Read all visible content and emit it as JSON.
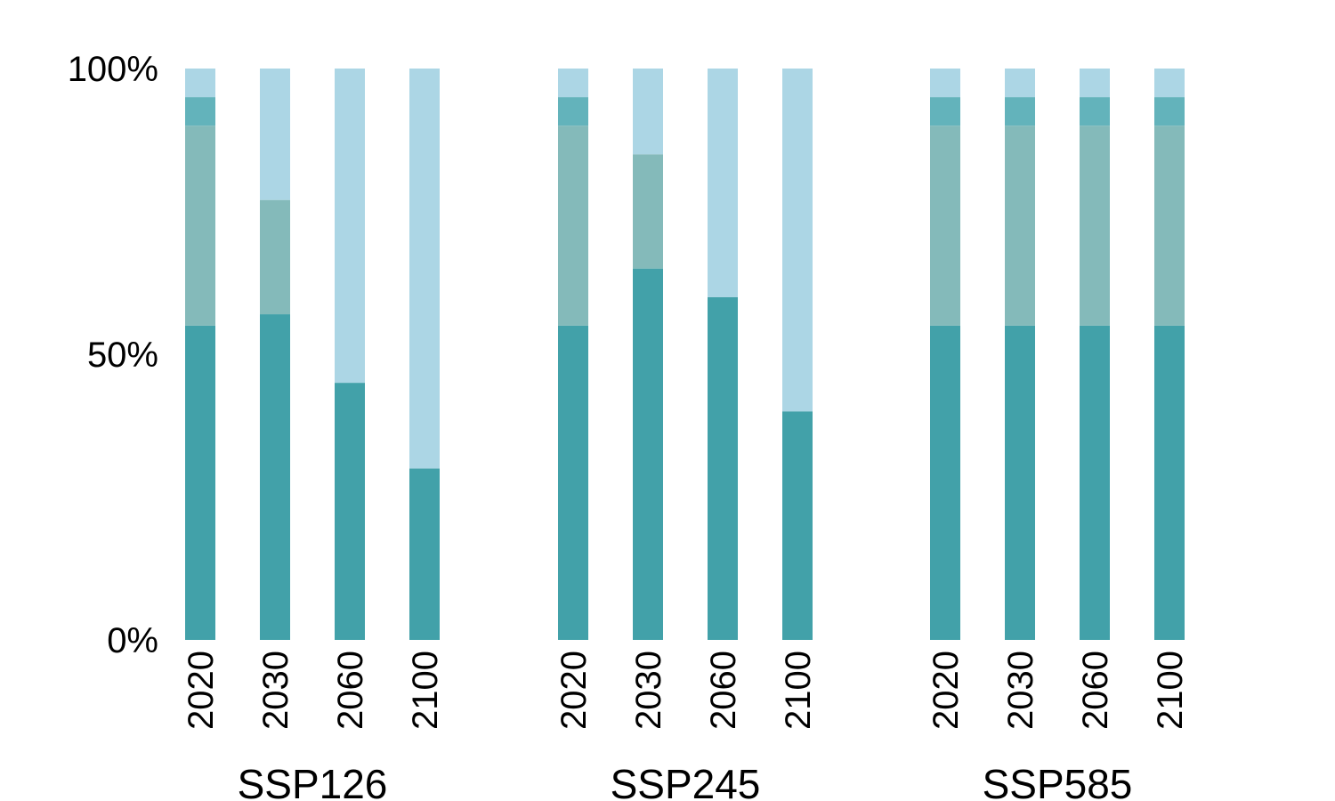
{
  "chart_data": {
    "type": "bar",
    "stacked": true,
    "yaxis": {
      "min": 0,
      "max": 100,
      "ticks": [
        {
          "value": 0,
          "label": "0%"
        },
        {
          "value": 50,
          "label": "50%"
        },
        {
          "value": 100,
          "label": "100%"
        }
      ]
    },
    "grid": false,
    "legend": "none",
    "segment_colors": [
      "#42a1a9",
      "#84baba",
      "#63b3bb",
      "#acd6e5"
    ],
    "groups": [
      {
        "name": "SSP126",
        "bars": [
          {
            "year": "2020",
            "segments": [
              55,
              35,
              5,
              5
            ]
          },
          {
            "year": "2030",
            "segments": [
              57,
              20,
              0,
              23
            ]
          },
          {
            "year": "2060",
            "segments": [
              45,
              0,
              0,
              55
            ]
          },
          {
            "year": "2100",
            "segments": [
              30,
              0,
              0,
              70
            ]
          }
        ]
      },
      {
        "name": "SSP245",
        "bars": [
          {
            "year": "2020",
            "segments": [
              55,
              35,
              5,
              5
            ]
          },
          {
            "year": "2030",
            "segments": [
              65,
              20,
              0,
              15
            ]
          },
          {
            "year": "2060",
            "segments": [
              60,
              0,
              0,
              40
            ]
          },
          {
            "year": "2100",
            "segments": [
              40,
              0,
              0,
              60
            ]
          }
        ]
      },
      {
        "name": "SSP585",
        "bars": [
          {
            "year": "2020",
            "segments": [
              55,
              35,
              5,
              5
            ]
          },
          {
            "year": "2030",
            "segments": [
              55,
              35,
              5,
              5
            ]
          },
          {
            "year": "2060",
            "segments": [
              55,
              35,
              5,
              5
            ]
          },
          {
            "year": "2100",
            "segments": [
              55,
              35,
              5,
              5
            ]
          }
        ]
      }
    ]
  }
}
